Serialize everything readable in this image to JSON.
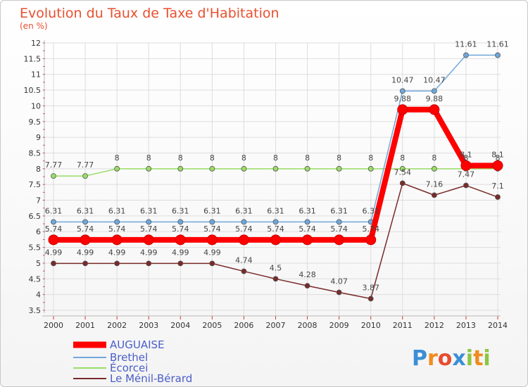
{
  "chart_data": {
    "type": "line",
    "title": "Evolution du Taux de Taxe d'Habitation",
    "subtitle": "(en %)",
    "xlabel": "",
    "ylabel": "",
    "x": [
      "2000",
      "2001",
      "2002",
      "2003",
      "2004",
      "2005",
      "2006",
      "2007",
      "2008",
      "2009",
      "2010",
      "2011",
      "2012",
      "2013",
      "2014"
    ],
    "ylim": [
      3.5,
      12
    ],
    "yticks": [
      "3.5",
      "4",
      "4.5",
      "5",
      "5.5",
      "6",
      "6.5",
      "7",
      "7.5",
      "8",
      "8.5",
      "9",
      "9.5",
      "10",
      "10.5",
      "11",
      "11.5",
      "12"
    ],
    "grid": true,
    "legend_position": "bottom-left",
    "series": [
      {
        "name": "AUGUAISE",
        "color": "#ff0000",
        "values": [
          5.74,
          5.74,
          5.74,
          5.74,
          5.74,
          5.74,
          5.74,
          5.74,
          5.74,
          5.74,
          5.74,
          9.88,
          9.88,
          8.1,
          8.1
        ],
        "labels": [
          "5.74",
          "5.74",
          "5.74",
          "5.74",
          "5.74",
          "5.74",
          "5.74",
          "5.74",
          "5.74",
          "5.74",
          "5.74",
          "9.88",
          "9.88",
          "8.1",
          "8.1"
        ]
      },
      {
        "name": "Brethel",
        "color": "#6fa8dc",
        "values": [
          6.31,
          6.31,
          6.31,
          6.31,
          6.31,
          6.31,
          6.31,
          6.31,
          6.31,
          6.31,
          6.31,
          10.47,
          10.47,
          11.61,
          11.61
        ],
        "labels": [
          "6.31",
          "6.31",
          "6.31",
          "6.31",
          "6.31",
          "6.31",
          "6.31",
          "6.31",
          "6.31",
          "6.31",
          "6.31",
          "10.47",
          "10.47",
          "11.61",
          "11.61"
        ]
      },
      {
        "name": "Écorcei",
        "color": "#99dd66",
        "values": [
          7.77,
          7.77,
          8,
          8,
          8,
          8,
          8,
          8,
          8,
          8,
          8,
          8,
          8,
          8,
          8
        ],
        "labels": [
          "7.77",
          "7.77",
          "8",
          "8",
          "8",
          "8",
          "8",
          "8",
          "8",
          "8",
          "8",
          "8",
          "8",
          "8",
          "8"
        ]
      },
      {
        "name": "Le Ménil-Bérard",
        "color": "#7a2a2a",
        "values": [
          4.99,
          4.99,
          4.99,
          4.99,
          4.99,
          4.99,
          4.74,
          4.5,
          4.28,
          4.07,
          3.87,
          7.54,
          7.16,
          7.47,
          7.1
        ],
        "labels": [
          "4.99",
          "4.99",
          "4.99",
          "4.99",
          "4.99",
          "4.99",
          "4.74",
          "4.5",
          "4.28",
          "4.07",
          "3.87",
          "7.54",
          "7.16",
          "7.47",
          "7.1"
        ]
      }
    ]
  },
  "brand": {
    "logo_text": "Proxiti"
  }
}
